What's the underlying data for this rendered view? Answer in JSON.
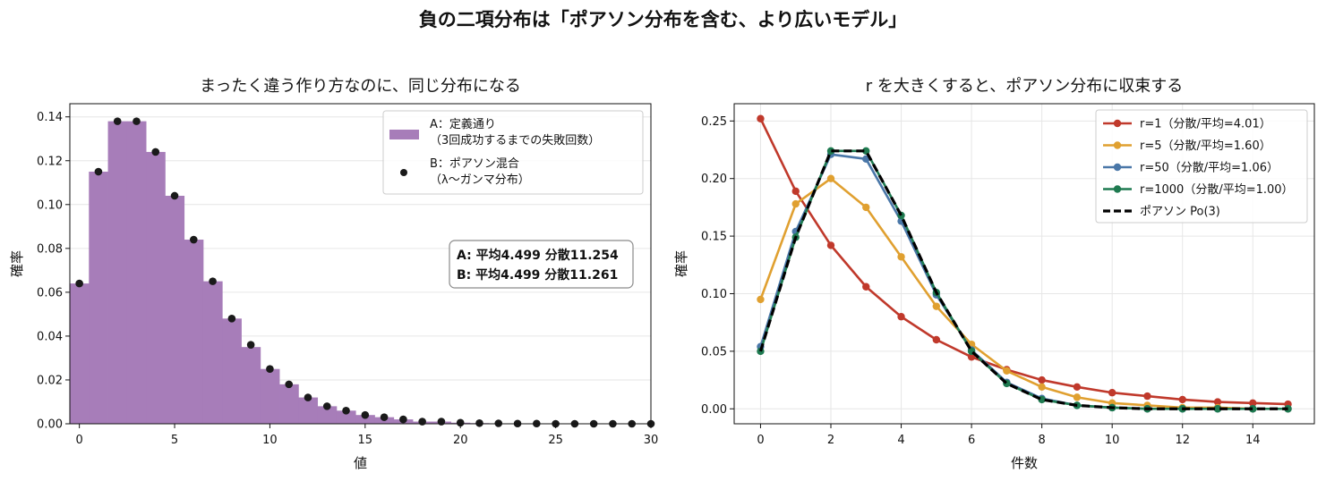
{
  "suptitle": "負の二項分布は「ポアソン分布を含む、より広いモデル」",
  "chart_data": [
    {
      "type": "bar",
      "title": "まったく違う作り方なのに、同じ分布になる",
      "xlabel": "値",
      "ylabel": "確率",
      "xlim": [
        -0.5,
        30
      ],
      "ylim": [
        0,
        0.146
      ],
      "xticks": [
        0,
        5,
        10,
        15,
        20,
        25,
        30
      ],
      "yticks": [
        0.0,
        0.02,
        0.04,
        0.06,
        0.08,
        0.1,
        0.12,
        0.14
      ],
      "grid": "y",
      "legend_position": "top-right",
      "colors": {
        "bars": "#a77db9",
        "points": "#1a1a1a"
      },
      "x": [
        0,
        1,
        2,
        3,
        4,
        5,
        6,
        7,
        8,
        9,
        10,
        11,
        12,
        13,
        14,
        15,
        16,
        17,
        18,
        19,
        20,
        21,
        22,
        23,
        24,
        25,
        26,
        27,
        28,
        29,
        30
      ],
      "series": [
        {
          "name": "A：定義通り（3回成功するまでの失敗回数）",
          "legend_lines": [
            "A：定義通り",
            "（3回成功するまでの失敗回数）"
          ],
          "kind": "bar",
          "values": [
            0.064,
            0.115,
            0.138,
            0.138,
            0.124,
            0.104,
            0.084,
            0.065,
            0.048,
            0.035,
            0.025,
            0.018,
            0.012,
            0.008,
            0.006,
            0.004,
            0.003,
            0.002,
            0.001,
            0.001,
            0.0005,
            0.0003,
            0.0002,
            0.0001,
            0.0001,
            0,
            0,
            0,
            0,
            0,
            0
          ]
        },
        {
          "name": "B：ポアソン混合（λ〜ガンマ分布）",
          "legend_lines": [
            "B：ポアソン混合",
            "（λ〜ガンマ分布）"
          ],
          "kind": "scatter",
          "values": [
            0.064,
            0.115,
            0.138,
            0.138,
            0.124,
            0.104,
            0.084,
            0.065,
            0.048,
            0.036,
            0.025,
            0.018,
            0.012,
            0.008,
            0.006,
            0.004,
            0.003,
            0.002,
            0.001,
            0.001,
            0.0005,
            0.0003,
            0.0002,
            0.0001,
            0.0001,
            0,
            0,
            0,
            0,
            0,
            0
          ]
        }
      ],
      "annotation": [
        "A: 平均4.499 分散11.254",
        "B: 平均4.499 分散11.261"
      ]
    },
    {
      "type": "line",
      "title": "r を大きくすると、ポアソン分布に収束する",
      "xlabel": "件数",
      "ylabel": "確率",
      "xlim": [
        -0.75,
        15.75
      ],
      "ylim": [
        -0.013,
        0.265
      ],
      "xticks": [
        0,
        2,
        4,
        6,
        8,
        10,
        12,
        14
      ],
      "yticks": [
        0.0,
        0.05,
        0.1,
        0.15,
        0.2,
        0.25
      ],
      "grid": "both",
      "legend_position": "top-right",
      "x": [
        0,
        1,
        2,
        3,
        4,
        5,
        6,
        7,
        8,
        9,
        10,
        11,
        12,
        13,
        14,
        15
      ],
      "series": [
        {
          "name": "r=1（分散/平均=4.01）",
          "color": "#c0392b",
          "style": "solid",
          "marker": true,
          "values": [
            0.252,
            0.189,
            0.142,
            0.106,
            0.08,
            0.06,
            0.045,
            0.034,
            0.025,
            0.019,
            0.014,
            0.011,
            0.008,
            0.006,
            0.005,
            0.004
          ]
        },
        {
          "name": "r=5（分散/平均=1.60）",
          "color": "#e0a030",
          "style": "solid",
          "marker": true,
          "values": [
            0.095,
            0.178,
            0.2,
            0.175,
            0.132,
            0.089,
            0.056,
            0.033,
            0.019,
            0.01,
            0.005,
            0.003,
            0.001,
            0.001,
            0.0,
            0.0
          ]
        },
        {
          "name": "r=50（分散/平均=1.06）",
          "color": "#4a77a8",
          "style": "solid",
          "marker": true,
          "values": [
            0.054,
            0.154,
            0.221,
            0.217,
            0.163,
            0.099,
            0.051,
            0.023,
            0.009,
            0.003,
            0.001,
            0.0,
            0.0,
            0.0,
            0.0,
            0.0
          ]
        },
        {
          "name": "r=1000（分散/平均=1.00）",
          "color": "#1e7a50",
          "style": "solid",
          "marker": true,
          "values": [
            0.05,
            0.149,
            0.224,
            0.224,
            0.168,
            0.101,
            0.05,
            0.022,
            0.008,
            0.003,
            0.001,
            0.0,
            0.0,
            0.0,
            0.0,
            0.0
          ]
        },
        {
          "name": "ポアソン Po(3)",
          "color": "#000000",
          "style": "dashed",
          "marker": false,
          "values": [
            0.05,
            0.149,
            0.224,
            0.224,
            0.168,
            0.101,
            0.05,
            0.022,
            0.008,
            0.003,
            0.001,
            0.0,
            0.0,
            0.0,
            0.0,
            0.0
          ]
        }
      ]
    }
  ]
}
